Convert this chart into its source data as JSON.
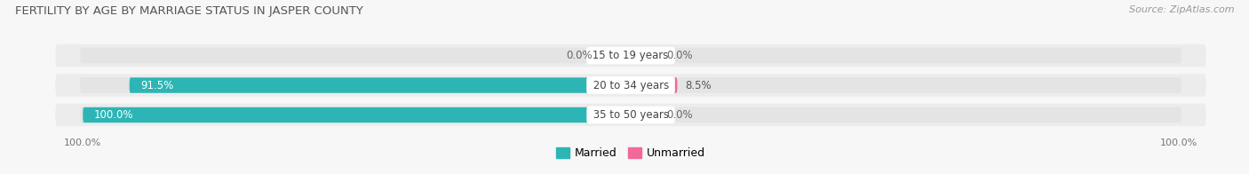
{
  "title": "FERTILITY BY AGE BY MARRIAGE STATUS IN JASPER COUNTY",
  "source": "Source: ZipAtlas.com",
  "categories": [
    "15 to 19 years",
    "20 to 34 years",
    "35 to 50 years"
  ],
  "married": [
    0.0,
    91.5,
    100.0
  ],
  "unmarried": [
    0.0,
    8.5,
    0.0
  ],
  "unmarried_display": [
    5.0,
    8.5,
    5.0
  ],
  "married_color": "#2db5b5",
  "unmarried_color_active": "#f0699a",
  "unmarried_color_inactive": "#f0b8cc",
  "bar_bg_color": "#e4e4e4",
  "bar_height": 0.52,
  "xlim": 100.0,
  "title_fontsize": 9.5,
  "source_fontsize": 8,
  "label_fontsize": 8.5,
  "value_fontsize": 8.5,
  "axis_label_fontsize": 8,
  "legend_fontsize": 9,
  "background_color": "#f7f7f7",
  "row_bg_color": "#ececec",
  "white_color": "#ffffff"
}
